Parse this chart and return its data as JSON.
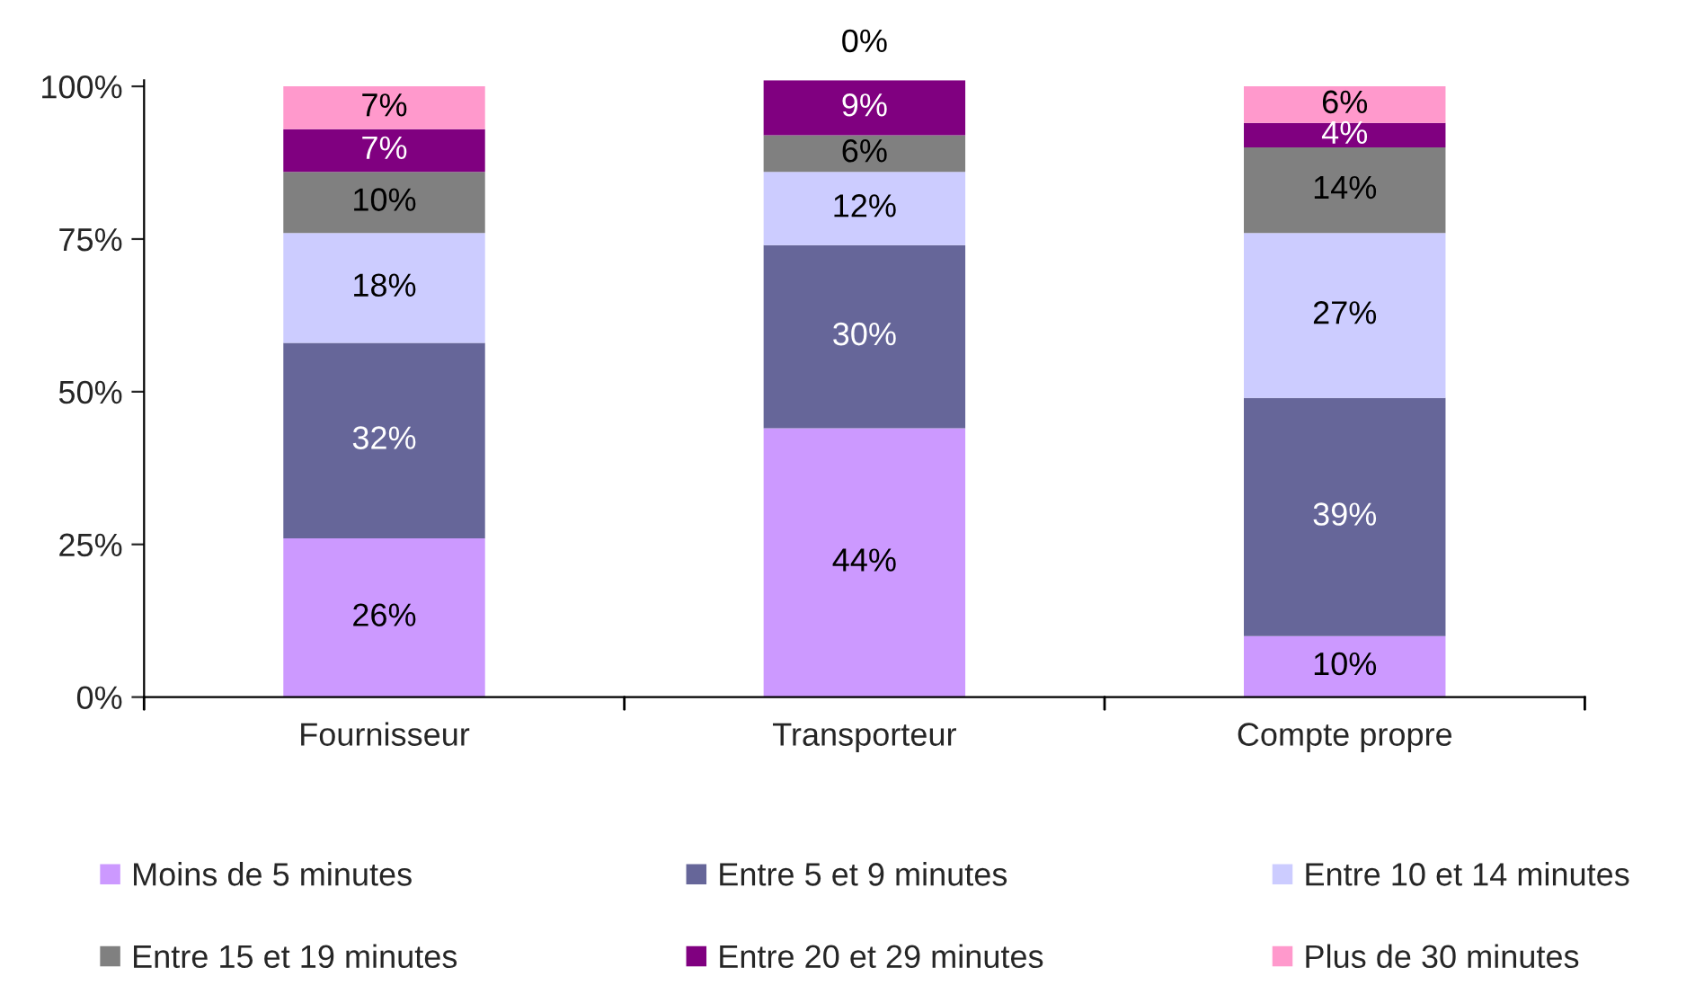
{
  "chart_data": {
    "type": "bar",
    "stacked": true,
    "categories": [
      "Fournisseur",
      "Transporteur",
      "Compte propre"
    ],
    "series": [
      {
        "name": "Moins de 5 minutes",
        "color": "#cc99ff",
        "values": [
          26,
          44,
          10
        ],
        "value_labels": [
          "26%",
          "44%",
          "10%"
        ]
      },
      {
        "name": "Entre 5 et 9 minutes",
        "color": "#666699",
        "values": [
          32,
          30,
          39
        ],
        "value_labels": [
          "32%",
          "30%",
          "39%"
        ]
      },
      {
        "name": "Entre 10 et 14 minutes",
        "color": "#ccccff",
        "values": [
          18,
          12,
          27
        ],
        "value_labels": [
          "18%",
          "12%",
          "27%"
        ]
      },
      {
        "name": "Entre 15 et 19 minutes",
        "color": "#808080",
        "values": [
          10,
          6,
          14
        ],
        "value_labels": [
          "10%",
          "6%",
          "14%"
        ]
      },
      {
        "name": "Entre 20 et 29 minutes",
        "color": "#800080",
        "values": [
          7,
          9,
          4
        ],
        "value_labels": [
          "7%",
          "9%",
          "4%"
        ]
      },
      {
        "name": "Plus de 30 minutes",
        "color": "#ff99cc",
        "values": [
          7,
          0,
          6
        ],
        "value_labels": [
          "7%",
          "0%",
          "6%"
        ]
      }
    ],
    "ylim": [
      0,
      101
    ],
    "yticks": [
      {
        "value": 0,
        "label": "0%"
      },
      {
        "value": 25,
        "label": "25%"
      },
      {
        "value": 50,
        "label": "50%"
      },
      {
        "value": 75,
        "label": "75%"
      },
      {
        "value": 100,
        "label": "100%"
      }
    ],
    "grid": false,
    "legend": "bottom"
  }
}
